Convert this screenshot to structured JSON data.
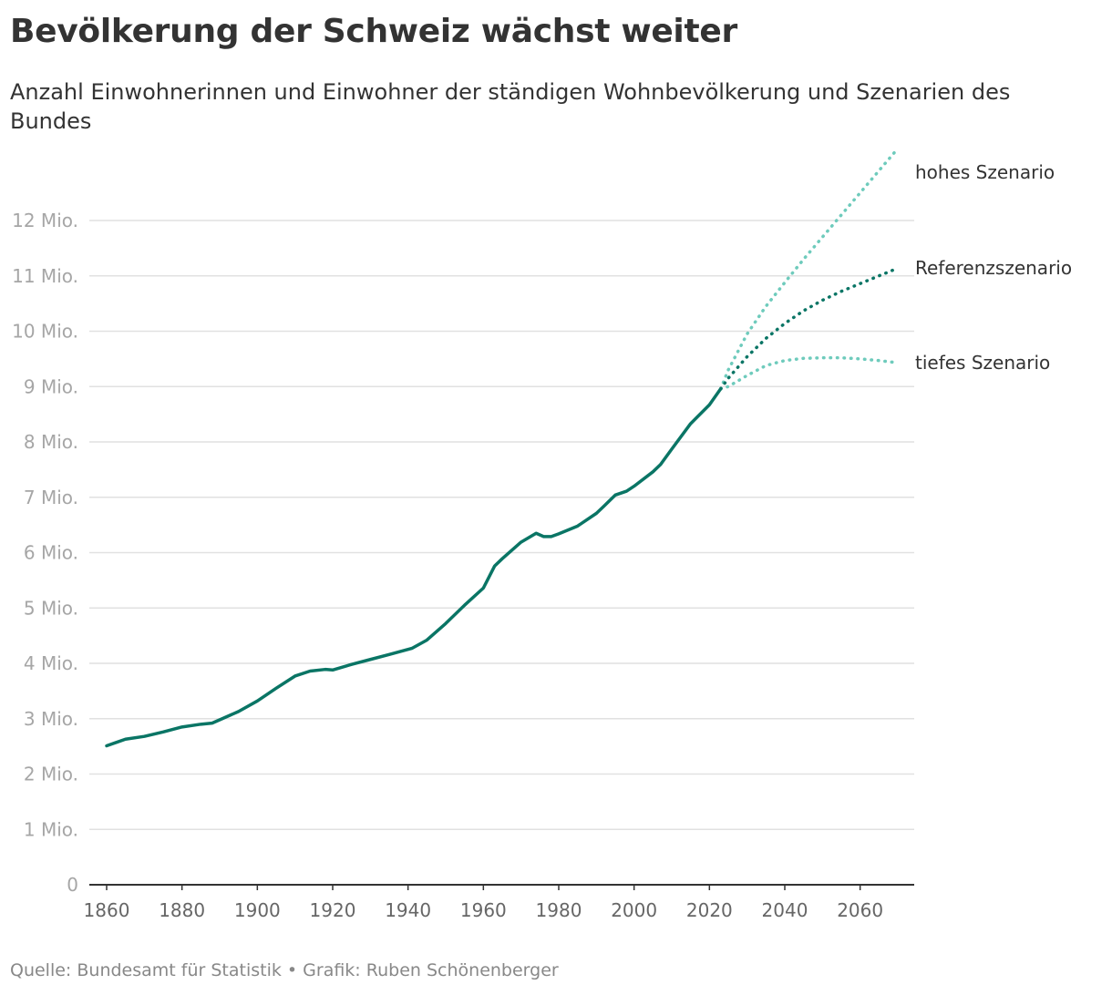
{
  "header": {
    "title": "Bevölkerung der Schweiz wächst weiter",
    "subtitle": "Anzahl Einwohnerinnen und Einwohner der ständigen Wohnbevölkerung und Szenarien des Bundes"
  },
  "footer": {
    "source": "Quelle: Bundesamt für Statistik • Grafik: Ruben Schönenberger"
  },
  "colors": {
    "history": "#0a7565",
    "reference": "#0a7565",
    "high_low": "#6ecbbc",
    "grid": "#e1e1e1",
    "axis": "#333333"
  },
  "chart_data": {
    "type": "line",
    "title": "Bevölkerung der Schweiz wächst weiter",
    "subtitle": "Anzahl Einwohnerinnen und Einwohner der ständigen Wohnbevölkerung und Szenarien des Bundes",
    "xlabel": "",
    "ylabel": "",
    "xlim": [
      1860,
      2070
    ],
    "ylim": [
      0,
      12.5
    ],
    "x_ticks": [
      1860,
      1880,
      1900,
      1920,
      1940,
      1960,
      1980,
      2000,
      2020,
      2040,
      2060
    ],
    "x_tick_labels": [
      "1860",
      "1880",
      "1900",
      "1920",
      "1940",
      "1960",
      "1980",
      "2000",
      "2020",
      "2040",
      "2060"
    ],
    "y_ticks": [
      0,
      1,
      2,
      3,
      4,
      5,
      6,
      7,
      8,
      9,
      10,
      11,
      12
    ],
    "y_tick_labels": [
      "0",
      "1 Mio.",
      "2 Mio.",
      "3 Mio.",
      "4 Mio.",
      "5 Mio.",
      "6 Mio.",
      "7 Mio.",
      "8 Mio.",
      "9 Mio.",
      "10 Mio.",
      "11 Mio.",
      "12 Mio."
    ],
    "grid": "horizontal",
    "legend": "none",
    "series": [
      {
        "x": [
          1860,
          1865,
          1870,
          1875,
          1880,
          1885,
          1888,
          1890,
          1895,
          1900,
          1905,
          1910,
          1914,
          1918,
          1920,
          1925,
          1930,
          1935,
          1941,
          1945,
          1950,
          1955,
          1960,
          1963,
          1965,
          1970,
          1974,
          1976,
          1978,
          1980,
          1985,
          1990,
          1992,
          1995,
          1998,
          2000,
          2005,
          2007,
          2010,
          2015,
          2020,
          2023
        ],
        "y": [
          2.51,
          2.63,
          2.68,
          2.76,
          2.85,
          2.9,
          2.92,
          2.98,
          3.13,
          3.32,
          3.55,
          3.77,
          3.86,
          3.89,
          3.88,
          3.98,
          4.07,
          4.16,
          4.27,
          4.42,
          4.72,
          5.05,
          5.36,
          5.76,
          5.89,
          6.19,
          6.35,
          6.29,
          6.29,
          6.34,
          6.48,
          6.71,
          6.84,
          7.04,
          7.11,
          7.2,
          7.46,
          7.59,
          7.87,
          8.33,
          8.67,
          8.96
        ]
      },
      {
        "name": "Referenzszenario",
        "x": [
          2023,
          2025,
          2030,
          2035,
          2040,
          2045,
          2050,
          2055,
          2060,
          2065,
          2070
        ],
        "y": [
          8.96,
          9.15,
          9.54,
          9.87,
          10.14,
          10.37,
          10.56,
          10.72,
          10.86,
          11.0,
          11.14
        ]
      },
      {
        "name": "hohes Szenario",
        "x": [
          2023,
          2025,
          2030,
          2035,
          2040,
          2045,
          2050,
          2055,
          2060,
          2065,
          2070
        ],
        "y": [
          8.96,
          9.3,
          9.95,
          10.45,
          10.88,
          11.3,
          11.7,
          12.1,
          12.5,
          12.9,
          13.3
        ]
      },
      {
        "name": "tiefes Szenario",
        "x": [
          2023,
          2025,
          2030,
          2035,
          2040,
          2045,
          2050,
          2055,
          2060,
          2065,
          2070
        ],
        "y": [
          8.96,
          9.0,
          9.2,
          9.38,
          9.47,
          9.51,
          9.52,
          9.52,
          9.5,
          9.47,
          9.43
        ]
      }
    ]
  }
}
